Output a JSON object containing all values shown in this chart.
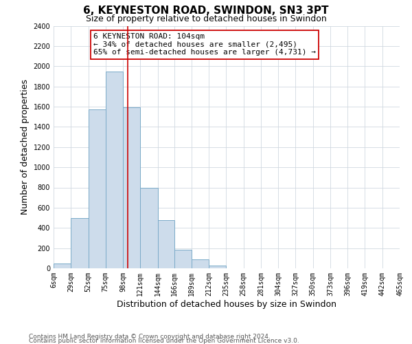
{
  "title": "6, KEYNESTON ROAD, SWINDON, SN3 3PT",
  "subtitle": "Size of property relative to detached houses in Swindon",
  "xlabel": "Distribution of detached houses by size in Swindon",
  "ylabel": "Number of detached properties",
  "bin_edges": [
    6,
    29,
    52,
    75,
    98,
    121,
    144,
    166,
    189,
    212,
    235,
    258,
    281,
    304,
    327,
    350,
    373,
    396,
    419,
    442,
    465
  ],
  "bin_heights": [
    50,
    500,
    1575,
    1950,
    1590,
    800,
    480,
    185,
    90,
    30,
    0,
    0,
    0,
    0,
    0,
    0,
    0,
    0,
    0,
    0
  ],
  "bar_facecolor": "#cddceb",
  "bar_edgecolor": "#7aaac8",
  "grid_color": "#d0d8e0",
  "vline_x": 104,
  "vline_color": "#cc0000",
  "annotation_text": "6 KEYNESTON ROAD: 104sqm\n← 34% of detached houses are smaller (2,495)\n65% of semi-detached houses are larger (4,731) →",
  "annotation_box_edgecolor": "#cc0000",
  "annotation_box_facecolor": "#ffffff",
  "ylim": [
    0,
    2400
  ],
  "yticks": [
    0,
    200,
    400,
    600,
    800,
    1000,
    1200,
    1400,
    1600,
    1800,
    2000,
    2200,
    2400
  ],
  "footer_line1": "Contains HM Land Registry data © Crown copyright and database right 2024.",
  "footer_line2": "Contains public sector information licensed under the Open Government Licence v3.0.",
  "background_color": "#ffffff",
  "title_fontsize": 11,
  "subtitle_fontsize": 9,
  "axis_label_fontsize": 9,
  "tick_label_fontsize": 7,
  "annotation_fontsize": 8,
  "footer_fontsize": 6.5
}
